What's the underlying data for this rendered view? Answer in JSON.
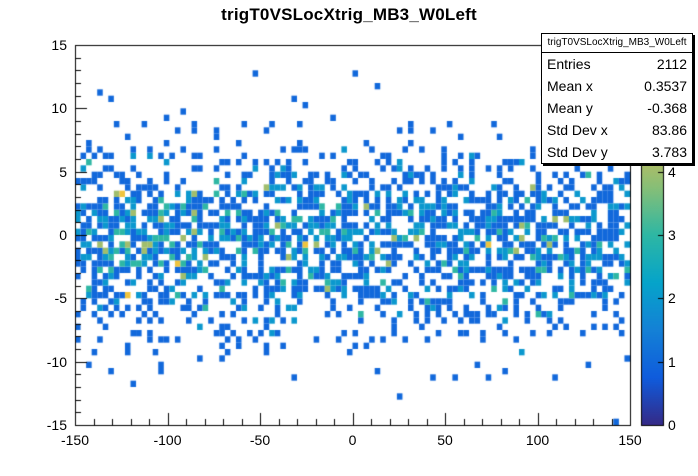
{
  "chart_data": {
    "type": "heatmap",
    "title": "trigT0VSLocXtrig_MB3_W0Left",
    "xlabel": "",
    "ylabel": "",
    "x_range": [
      -150,
      150
    ],
    "y_range": [
      -15,
      15
    ],
    "x_major_ticks": [
      -150,
      -100,
      -50,
      0,
      50,
      100,
      150
    ],
    "x_minor_step": 10,
    "y_major_ticks": [
      -15,
      -10,
      -5,
      0,
      5,
      10,
      15
    ],
    "y_minor_step": 1,
    "n_x_bins": 100,
    "n_y_bins": 60,
    "z_range": [
      0,
      6
    ],
    "colorbar_ticks": [
      0,
      1,
      2,
      3,
      4
    ],
    "grid": false,
    "legend": "none",
    "palette": [
      "#352A87",
      "#0F5CDD",
      "#1481D6",
      "#06A4CA",
      "#2EB7A4",
      "#87BF77",
      "#D1BB59",
      "#FEC832",
      "#F9FB0E"
    ],
    "distribution": {
      "entries": 2112,
      "x": {
        "type": "uniform",
        "min": -150,
        "max": 150
      },
      "y": {
        "type": "gaussian",
        "mean": -0.368,
        "sigma": 3.783
      },
      "seed": 1337
    }
  },
  "stats_box": {
    "title": "trigT0VSLocXtrig_MB3_W0Left",
    "rows": [
      {
        "label": "Entries",
        "value": "2112"
      },
      {
        "label": "Mean x",
        "value": "0.3537"
      },
      {
        "label": "Mean y",
        "value": "-0.368"
      },
      {
        "label": "Std Dev x",
        "value": "83.86"
      },
      {
        "label": "Std Dev y",
        "value": "3.783"
      }
    ]
  }
}
